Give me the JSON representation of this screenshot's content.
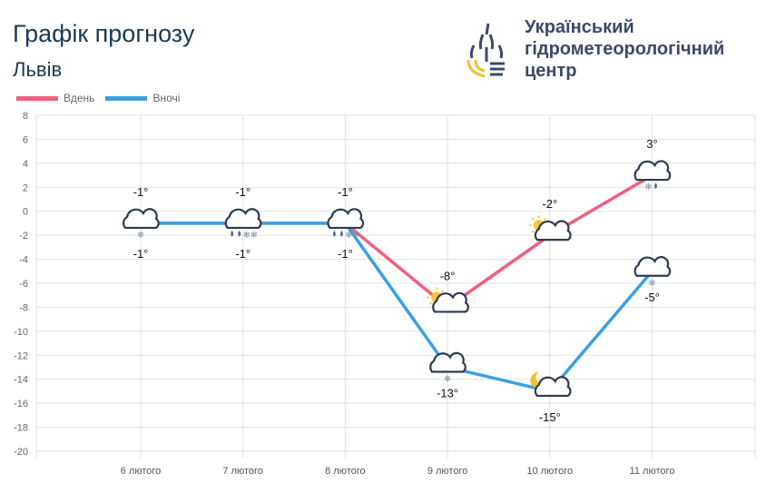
{
  "header": {
    "title": "Графік прогнозу",
    "city": "Львів",
    "org_name": [
      "Український",
      "гідрометеорологічний",
      "центр"
    ]
  },
  "colors": {
    "day": "#f0607f",
    "night": "#3aa0e0",
    "grid": "#e2e2e2",
    "icon": "#2f3a4e"
  },
  "chart_data": {
    "type": "line",
    "categories": [
      "6 лютого",
      "7 лютого",
      "8 лютого",
      "9 лютого",
      "10 лютого",
      "11 лютого"
    ],
    "ylim": [
      -20,
      8
    ],
    "yticks": [
      8,
      6,
      4,
      2,
      0,
      -2,
      -4,
      -6,
      -8,
      -10,
      -12,
      -14,
      -16,
      -18,
      -20
    ],
    "grid": true,
    "legend": "top-left",
    "series": [
      {
        "name": "Вдень",
        "values": [
          -1,
          -1,
          -1,
          -8,
          -2,
          3
        ],
        "labels": [
          "-1°",
          "-1°",
          "-1°",
          "-8°",
          "-2°",
          "3°"
        ],
        "icons": [
          "cloud-snow",
          "cloud-rain-snow",
          "cloud-rain-snow",
          "sun-cloud",
          "sun-cloud",
          "cloud-snow-rain"
        ]
      },
      {
        "name": "Вночі",
        "values": [
          -1,
          -1,
          -1,
          -13,
          -15,
          -5
        ],
        "labels": [
          "-1°",
          "-1°",
          "-1°",
          "-13°",
          "-15°",
          "-5°"
        ],
        "icons": [
          "cloud-snow",
          "cloud-rain-snow",
          "cloud-rain-snow",
          "cloud-snow",
          "moon-cloud",
          "cloud-snow"
        ]
      }
    ]
  }
}
